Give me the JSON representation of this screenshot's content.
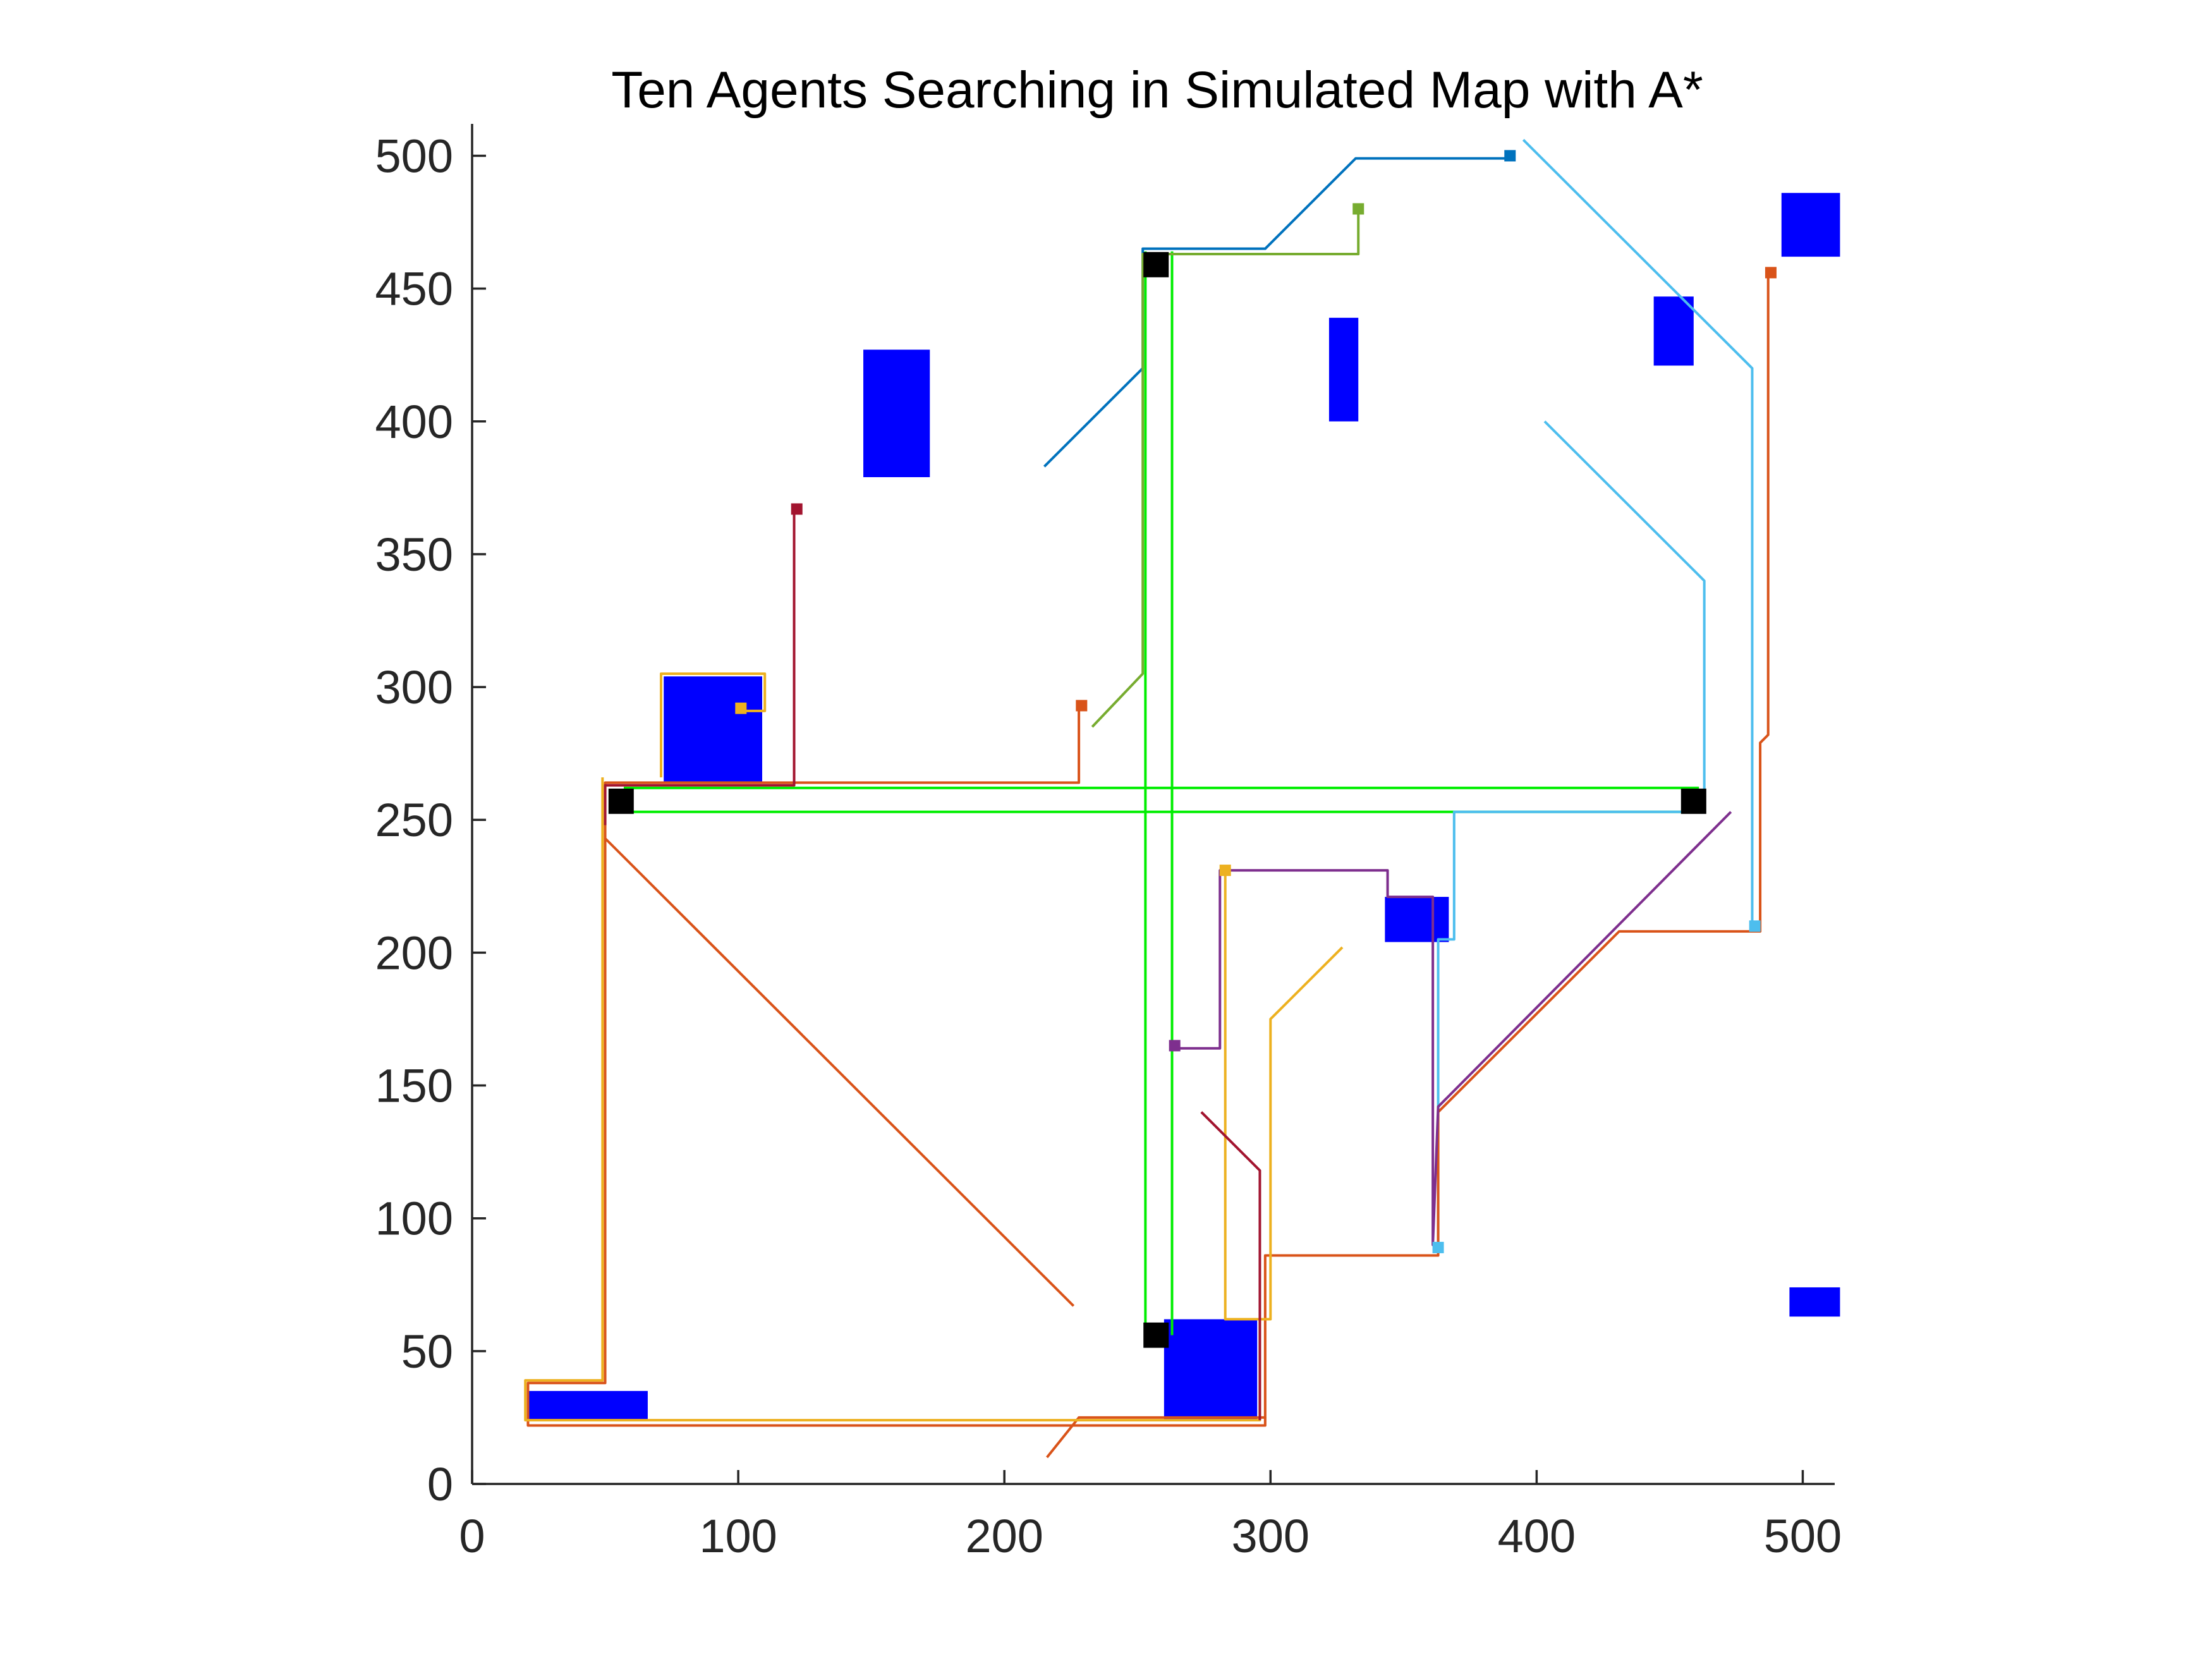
{
  "chart_data": {
    "type": "line",
    "title": "Ten Agents Searching in Simulated Map with A*",
    "xlabel": "",
    "ylabel": "",
    "xlim": [
      0,
      512
    ],
    "ylim": [
      0,
      512
    ],
    "xticks": [
      0,
      100,
      200,
      300,
      400,
      500
    ],
    "yticks": [
      0,
      50,
      100,
      150,
      200,
      250,
      300,
      350,
      400,
      450,
      500
    ],
    "grid": false,
    "legend": "none",
    "obstacle_color": "#0000ff",
    "obstacles": [
      {
        "x0": 147,
        "y0": 379,
        "x1": 172,
        "y1": 427
      },
      {
        "x0": 72,
        "y0": 264,
        "x1": 109,
        "y1": 304
      },
      {
        "x0": 322,
        "y0": 400,
        "x1": 333,
        "y1": 439
      },
      {
        "x0": 444,
        "y0": 421,
        "x1": 459,
        "y1": 447
      },
      {
        "x0": 492,
        "y0": 462,
        "x1": 514,
        "y1": 486
      },
      {
        "x0": 343,
        "y0": 204,
        "x1": 367,
        "y1": 221
      },
      {
        "x0": 260,
        "y0": 24,
        "x1": 295,
        "y1": 62
      },
      {
        "x0": 21,
        "y0": 24,
        "x1": 66,
        "y1": 35
      },
      {
        "x0": 495,
        "y0": 63,
        "x1": 514,
        "y1": 74
      }
    ],
    "frontier_color": "#00ee00",
    "frontier": [
      [
        [
          57,
          262
        ],
        [
          461,
          262
        ]
      ],
      [
        [
          57,
          253
        ],
        [
          461,
          253
        ]
      ],
      [
        [
          253,
          464
        ],
        [
          253,
          56
        ]
      ],
      [
        [
          263,
          464
        ],
        [
          263,
          56
        ]
      ],
      [
        [
          253,
          463
        ],
        [
          263,
          463
        ]
      ]
    ],
    "centers": [
      [
        56,
        257
      ],
      [
        257,
        459
      ],
      [
        459,
        257
      ],
      [
        257,
        56
      ]
    ],
    "series": [
      {
        "color": "#0072bd",
        "points": [
          [
            215,
            383
          ],
          [
            252,
            420
          ],
          [
            252,
            465
          ],
          [
            298,
            465
          ],
          [
            332,
            499
          ],
          [
            390,
            499
          ]
        ],
        "end": [
          390,
          500
        ]
      },
      {
        "color": "#77ac30",
        "points": [
          [
            233,
            285
          ],
          [
            252,
            305
          ],
          [
            252,
            463
          ],
          [
            333,
            463
          ],
          [
            333,
            479
          ]
        ],
        "end": [
          333,
          480
        ]
      },
      {
        "color": "#4dbeee",
        "points": [
          [
            395,
            506
          ],
          [
            481,
            420
          ],
          [
            481,
            210
          ]
        ],
        "end": [
          482,
          210
        ]
      },
      {
        "color": "#4dbeee",
        "points": [
          [
            403,
            400
          ],
          [
            463,
            340
          ],
          [
            463,
            253
          ],
          [
            369,
            253
          ],
          [
            369,
            205
          ],
          [
            363,
            205
          ],
          [
            363,
            88
          ]
        ],
        "end": [
          363,
          89
        ]
      },
      {
        "color": "#d95319",
        "points": [
          [
            487,
            456
          ],
          [
            487,
            282
          ],
          [
            484,
            279
          ],
          [
            484,
            208
          ],
          [
            431,
            208
          ],
          [
            363,
            140
          ],
          [
            363,
            86
          ],
          [
            298,
            86
          ],
          [
            298,
            25
          ],
          [
            228,
            25
          ],
          [
            216,
            10
          ]
        ],
        "end": [
          488,
          456
        ]
      },
      {
        "color": "#d95319",
        "points": [
          [
            226,
            67
          ],
          [
            50,
            243
          ],
          [
            50,
            264
          ],
          [
            228,
            264
          ],
          [
            228,
            292
          ]
        ],
        "end": [
          229,
          293
        ]
      },
      {
        "color": "#d95319",
        "points": [
          [
            50,
            243
          ],
          [
            50,
            38
          ],
          [
            21,
            38
          ],
          [
            21,
            22
          ],
          [
            298,
            22
          ],
          [
            298,
            25
          ]
        ],
        "end": null
      },
      {
        "color": "#edb120",
        "points": [
          [
            327,
            202
          ],
          [
            300,
            175
          ],
          [
            300,
            62
          ],
          [
            283,
            62
          ],
          [
            283,
            231
          ]
        ],
        "end": [
          283,
          231
        ]
      },
      {
        "color": "#edb120",
        "points": [
          [
            49,
            266
          ],
          [
            49,
            39
          ],
          [
            20,
            39
          ],
          [
            20,
            24
          ],
          [
            296,
            24
          ],
          [
            296,
            62
          ]
        ],
        "end": null
      },
      {
        "color": "#edb120",
        "points": [
          [
            71,
            266
          ],
          [
            71,
            305
          ],
          [
            110,
            305
          ],
          [
            110,
            291
          ],
          [
            100,
            291
          ]
        ],
        "end": [
          101,
          292
        ]
      },
      {
        "color": "#7e2f8e",
        "points": [
          [
            264,
            164
          ],
          [
            281,
            164
          ],
          [
            281,
            231
          ],
          [
            344,
            231
          ],
          [
            344,
            221
          ],
          [
            361,
            221
          ],
          [
            361,
            90
          ],
          [
            363,
            142
          ],
          [
            473,
            253
          ]
        ],
        "end": [
          264,
          165
        ]
      },
      {
        "color": "#a2142f",
        "points": [
          [
            121,
            366
          ],
          [
            121,
            263
          ],
          [
            50,
            263
          ],
          [
            50,
            248
          ]
        ],
        "end": [
          122,
          367
        ]
      },
      {
        "color": "#a2142f",
        "points": [
          [
            274,
            140
          ],
          [
            296,
            118
          ],
          [
            296,
            24
          ]
        ],
        "end": null
      }
    ]
  }
}
